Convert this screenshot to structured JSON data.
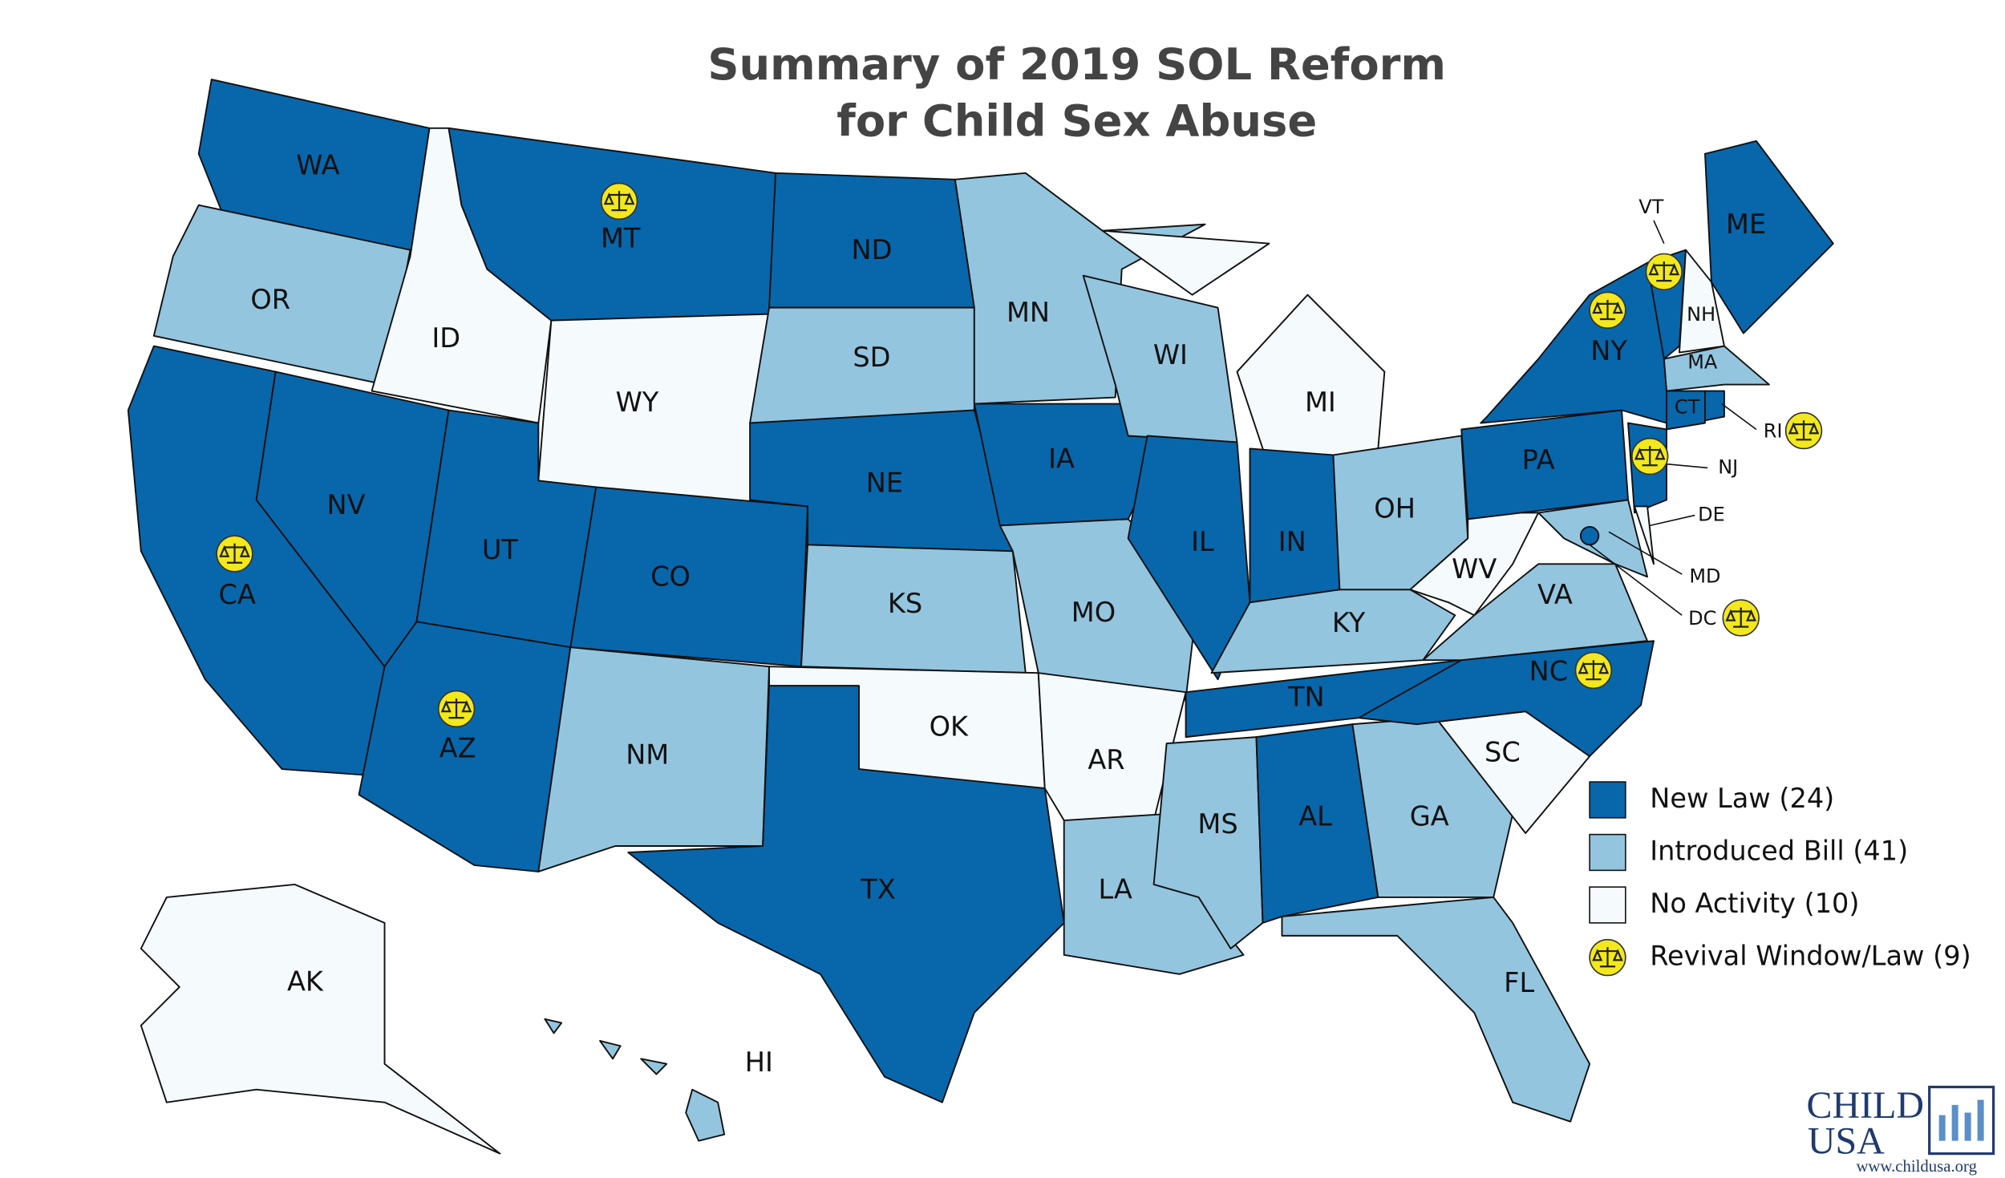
{
  "title": [
    "Summary of 2019 SOL Reform",
    "for Child Sex Abuse"
  ],
  "legend": [
    {
      "label": "New Law (24)",
      "color": "#0866ab"
    },
    {
      "label": "Introduced Bill (41)",
      "color": "#93c5df"
    },
    {
      "label": "No Activity (10)",
      "color": "#f5fafc"
    }
  ],
  "revival_legend": {
    "label": "Revival Window/Law (9)",
    "color": "#f2e81c"
  },
  "states": [
    {
      "label": "WA",
      "status": 0,
      "revival": false
    },
    {
      "label": "OR",
      "status": 1,
      "revival": false
    },
    {
      "label": "CA",
      "status": 0,
      "revival": true
    },
    {
      "label": "NV",
      "status": 0,
      "revival": false
    },
    {
      "label": "ID",
      "status": 2,
      "revival": false
    },
    {
      "label": "MT",
      "status": 0,
      "revival": true
    },
    {
      "label": "WY",
      "status": 2,
      "revival": false
    },
    {
      "label": "UT",
      "status": 0,
      "revival": false
    },
    {
      "label": "CO",
      "status": 0,
      "revival": false
    },
    {
      "label": "AZ",
      "status": 0,
      "revival": true
    },
    {
      "label": "NM",
      "status": 1,
      "revival": false
    },
    {
      "label": "ND",
      "status": 0,
      "revival": false
    },
    {
      "label": "SD",
      "status": 1,
      "revival": false
    },
    {
      "label": "NE",
      "status": 0,
      "revival": false
    },
    {
      "label": "KS",
      "status": 1,
      "revival": false
    },
    {
      "label": "OK",
      "status": 2,
      "revival": false
    },
    {
      "label": "TX",
      "status": 0,
      "revival": false
    },
    {
      "label": "MN",
      "status": 1,
      "revival": false
    },
    {
      "label": "IA",
      "status": 0,
      "revival": false
    },
    {
      "label": "MO",
      "status": 1,
      "revival": false
    },
    {
      "label": "AR",
      "status": 2,
      "revival": false
    },
    {
      "label": "LA",
      "status": 1,
      "revival": false
    },
    {
      "label": "WI",
      "status": 1,
      "revival": false
    },
    {
      "label": "IL",
      "status": 0,
      "revival": false
    },
    {
      "label": "MI",
      "status": 2,
      "revival": false
    },
    {
      "label": "IN",
      "status": 0,
      "revival": false
    },
    {
      "label": "OH",
      "status": 1,
      "revival": false
    },
    {
      "label": "KY",
      "status": 1,
      "revival": false
    },
    {
      "label": "TN",
      "status": 0,
      "revival": false
    },
    {
      "label": "MS",
      "status": 1,
      "revival": false
    },
    {
      "label": "AL",
      "status": 0,
      "revival": false
    },
    {
      "label": "GA",
      "status": 1,
      "revival": false
    },
    {
      "label": "FL",
      "status": 1,
      "revival": false
    },
    {
      "label": "SC",
      "status": 2,
      "revival": false
    },
    {
      "label": "NC",
      "status": 0,
      "revival": true
    },
    {
      "label": "VA",
      "status": 1,
      "revival": false
    },
    {
      "label": "WV",
      "status": 2,
      "revival": false
    },
    {
      "label": "PA",
      "status": 0,
      "revival": false
    },
    {
      "label": "NY",
      "status": 0,
      "revival": true
    },
    {
      "label": "NJ",
      "status": 0,
      "revival": true
    },
    {
      "label": "DE",
      "status": 2,
      "revival": false
    },
    {
      "label": "MD",
      "status": 1,
      "revival": false
    },
    {
      "label": "VT",
      "status": 0,
      "revival": true
    },
    {
      "label": "NH",
      "status": 2,
      "revival": false
    },
    {
      "label": "ME",
      "status": 0,
      "revival": false
    },
    {
      "label": "MA",
      "status": 1,
      "revival": false
    },
    {
      "label": "CT",
      "status": 0,
      "revival": false
    },
    {
      "label": "RI",
      "status": 0,
      "revival": true
    },
    {
      "label": "DC",
      "status": 0,
      "revival": true
    },
    {
      "label": "AK",
      "status": 2,
      "revival": false
    },
    {
      "label": "HI",
      "status": 1,
      "revival": false
    }
  ],
  "logo": {
    "line1": "CHILD",
    "line2": "USA",
    "url": "www.childusa.org"
  }
}
